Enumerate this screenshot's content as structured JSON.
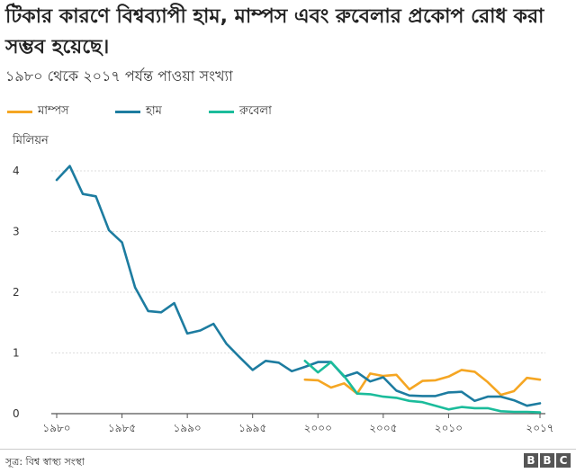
{
  "header": {
    "title": "টিকার কারণে বিশ্বব্যাপী হাম, মাম্পস এবং রুবেলার প্রকোপ রোধ করা সম্ভব হয়েছে।",
    "subtitle": "১৯৮০ থেকে ২০১৭ পর্যন্ত পাওয়া সংখ্যা"
  },
  "footer": {
    "source": "সূত্র: বিশ্ব স্বাস্থ্য সংস্থা",
    "logo_letters": [
      "B",
      "B",
      "C"
    ]
  },
  "colors": {
    "mumps": "#f5a623",
    "measles": "#1d7ca0",
    "rubella": "#1bbc9b",
    "grid": "#dddddd",
    "logo": "#555555"
  },
  "chart_data": {
    "type": "line",
    "title": "টিকার কারণে বিশ্বব্যাপী হাম, মাম্পস এবং রুবেলার প্রকোপ রোধ করা সম্ভব হয়েছে।",
    "subtitle": "১৯৮০ থেকে ২০১৭ পর্যন্ত পাওয়া সংখ্যা",
    "ylabel": "মিলিয়ন",
    "xlabel": "",
    "xlim": [
      1980,
      2017
    ],
    "ylim": [
      0,
      4
    ],
    "grid": true,
    "legend": "top-left",
    "y_ticks": [
      {
        "value": 0,
        "label": "0"
      },
      {
        "value": 1,
        "label": "1"
      },
      {
        "value": 2,
        "label": "2"
      },
      {
        "value": 3,
        "label": "3"
      },
      {
        "value": 4,
        "label": "4"
      }
    ],
    "x_ticks": [
      {
        "value": 1980,
        "label": "১৯৮০"
      },
      {
        "value": 1985,
        "label": "১৯৮৫"
      },
      {
        "value": 1990,
        "label": "১৯৯০"
      },
      {
        "value": 1995,
        "label": "১৯৯৫"
      },
      {
        "value": 2000,
        "label": "২০০০"
      },
      {
        "value": 2005,
        "label": "২০০৫"
      },
      {
        "value": 2010,
        "label": "২০১০"
      },
      {
        "value": 2017,
        "label": "২০১৭"
      }
    ],
    "series": [
      {
        "key": "mumps",
        "name": "মাম্পস",
        "color": "#f5a623",
        "points": [
          {
            "x": 1999,
            "y": 0.56
          },
          {
            "x": 2000,
            "y": 0.55
          },
          {
            "x": 2001,
            "y": 0.43
          },
          {
            "x": 2002,
            "y": 0.5
          },
          {
            "x": 2003,
            "y": 0.33
          },
          {
            "x": 2004,
            "y": 0.66
          },
          {
            "x": 2005,
            "y": 0.62
          },
          {
            "x": 2006,
            "y": 0.64
          },
          {
            "x": 2007,
            "y": 0.4
          },
          {
            "x": 2008,
            "y": 0.54
          },
          {
            "x": 2009,
            "y": 0.55
          },
          {
            "x": 2010,
            "y": 0.61
          },
          {
            "x": 2011,
            "y": 0.72
          },
          {
            "x": 2012,
            "y": 0.69
          },
          {
            "x": 2013,
            "y": 0.52
          },
          {
            "x": 2014,
            "y": 0.31
          },
          {
            "x": 2015,
            "y": 0.37
          },
          {
            "x": 2016,
            "y": 0.59
          },
          {
            "x": 2017,
            "y": 0.56
          }
        ]
      },
      {
        "key": "measles",
        "name": "হাম",
        "color": "#1d7ca0",
        "points": [
          {
            "x": 1980,
            "y": 3.85
          },
          {
            "x": 1981,
            "y": 4.08
          },
          {
            "x": 1982,
            "y": 3.62
          },
          {
            "x": 1983,
            "y": 3.58
          },
          {
            "x": 1984,
            "y": 3.02
          },
          {
            "x": 1985,
            "y": 2.82
          },
          {
            "x": 1986,
            "y": 2.08
          },
          {
            "x": 1987,
            "y": 1.69
          },
          {
            "x": 1988,
            "y": 1.67
          },
          {
            "x": 1989,
            "y": 1.82
          },
          {
            "x": 1990,
            "y": 1.32
          },
          {
            "x": 1991,
            "y": 1.37
          },
          {
            "x": 1992,
            "y": 1.48
          },
          {
            "x": 1993,
            "y": 1.15
          },
          {
            "x": 1994,
            "y": 0.93
          },
          {
            "x": 1995,
            "y": 0.72
          },
          {
            "x": 1996,
            "y": 0.87
          },
          {
            "x": 1997,
            "y": 0.84
          },
          {
            "x": 1998,
            "y": 0.7
          },
          {
            "x": 1999,
            "y": 0.77
          },
          {
            "x": 2000,
            "y": 0.85
          },
          {
            "x": 2001,
            "y": 0.85
          },
          {
            "x": 2002,
            "y": 0.61
          },
          {
            "x": 2003,
            "y": 0.68
          },
          {
            "x": 2004,
            "y": 0.53
          },
          {
            "x": 2005,
            "y": 0.6
          },
          {
            "x": 2006,
            "y": 0.38
          },
          {
            "x": 2007,
            "y": 0.3
          },
          {
            "x": 2008,
            "y": 0.29
          },
          {
            "x": 2009,
            "y": 0.29
          },
          {
            "x": 2010,
            "y": 0.35
          },
          {
            "x": 2011,
            "y": 0.36
          },
          {
            "x": 2012,
            "y": 0.21
          },
          {
            "x": 2013,
            "y": 0.28
          },
          {
            "x": 2014,
            "y": 0.28
          },
          {
            "x": 2015,
            "y": 0.22
          },
          {
            "x": 2016,
            "y": 0.13
          },
          {
            "x": 2017,
            "y": 0.17
          }
        ]
      },
      {
        "key": "rubella",
        "name": "রুবেলা",
        "color": "#1bbc9b",
        "points": [
          {
            "x": 1999,
            "y": 0.87
          },
          {
            "x": 2000,
            "y": 0.68
          },
          {
            "x": 2001,
            "y": 0.85
          },
          {
            "x": 2002,
            "y": 0.62
          },
          {
            "x": 2003,
            "y": 0.33
          },
          {
            "x": 2004,
            "y": 0.32
          },
          {
            "x": 2005,
            "y": 0.28
          },
          {
            "x": 2006,
            "y": 0.26
          },
          {
            "x": 2007,
            "y": 0.21
          },
          {
            "x": 2008,
            "y": 0.19
          },
          {
            "x": 2009,
            "y": 0.13
          },
          {
            "x": 2010,
            "y": 0.07
          },
          {
            "x": 2011,
            "y": 0.11
          },
          {
            "x": 2012,
            "y": 0.09
          },
          {
            "x": 2013,
            "y": 0.09
          },
          {
            "x": 2014,
            "y": 0.04
          },
          {
            "x": 2015,
            "y": 0.03
          },
          {
            "x": 2016,
            "y": 0.03
          },
          {
            "x": 2017,
            "y": 0.02
          }
        ]
      }
    ]
  }
}
